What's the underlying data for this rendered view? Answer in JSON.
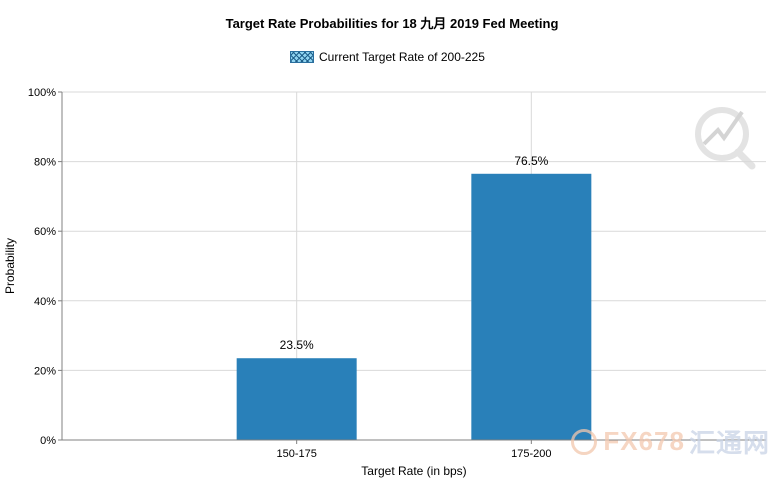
{
  "chart_data": {
    "type": "bar",
    "title": "Target Rate Probabilities for 18 九月 2019  Fed Meeting",
    "legend": {
      "label": "Current Target Rate of 200-225",
      "placement": "top-center"
    },
    "xlabel": "Target Rate (in bps)",
    "ylabel": "Probability",
    "categories": [
      "150-175",
      "175-200"
    ],
    "values": [
      23.5,
      76.5
    ],
    "data_labels": [
      "23.5%",
      "76.5%"
    ],
    "ylim": [
      0,
      100
    ],
    "yticks": [
      0,
      20,
      40,
      60,
      80,
      100
    ],
    "ytick_labels": [
      "0%",
      "20%",
      "40%",
      "60%",
      "80%",
      "100%"
    ],
    "grid": true,
    "bar_color": "#2980b9"
  },
  "watermark": {
    "latin": "FX678",
    "cn": "汇通网"
  }
}
